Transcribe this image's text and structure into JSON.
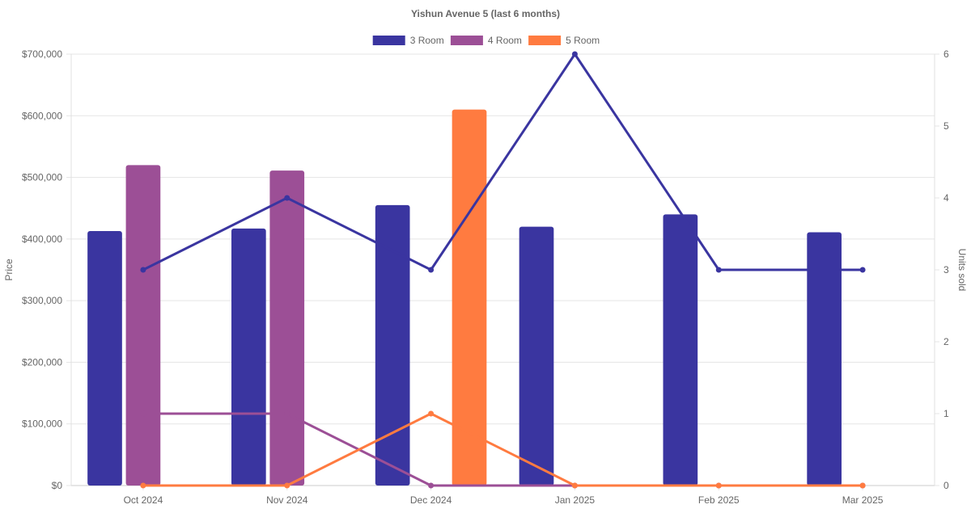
{
  "chart_data": {
    "type": "bar",
    "title": "Yishun Avenue 5 (last 6 months)",
    "categories": [
      "Oct 2024",
      "Nov 2024",
      "Dec 2024",
      "Jan 2025",
      "Feb 2025",
      "Mar 2025"
    ],
    "ylabel": "Price",
    "y2label": "Units sold",
    "ylim": [
      0,
      700000
    ],
    "y2lim": [
      0,
      6
    ],
    "y_ticks": [
      "$0",
      "$100,000",
      "$200,000",
      "$300,000",
      "$400,000",
      "$500,000",
      "$600,000",
      "$700,000"
    ],
    "y2_ticks": [
      "0",
      "1",
      "2",
      "3",
      "4",
      "5",
      "6"
    ],
    "legend_position": "top-center",
    "grid": true,
    "bar_series": [
      {
        "name": "3 Room",
        "color": "#3a35a0",
        "values": [
          413000,
          417000,
          455000,
          420000,
          440000,
          411000
        ]
      },
      {
        "name": "4 Room",
        "color": "#9c4f96",
        "values": [
          520000,
          511000,
          null,
          null,
          null,
          null
        ]
      },
      {
        "name": "5 Room",
        "color": "#ff7b40",
        "values": [
          null,
          null,
          610000,
          null,
          null,
          null
        ]
      }
    ],
    "line_series": [
      {
        "name": "3 Room",
        "color": "#3a35a0",
        "values": [
          3,
          4,
          3,
          6,
          3,
          3
        ]
      },
      {
        "name": "4 Room",
        "color": "#9c4f96",
        "values": [
          1,
          1,
          0,
          0,
          0,
          0
        ]
      },
      {
        "name": "5 Room",
        "color": "#ff7b40",
        "values": [
          0,
          0,
          1,
          0,
          0,
          0
        ]
      }
    ]
  }
}
